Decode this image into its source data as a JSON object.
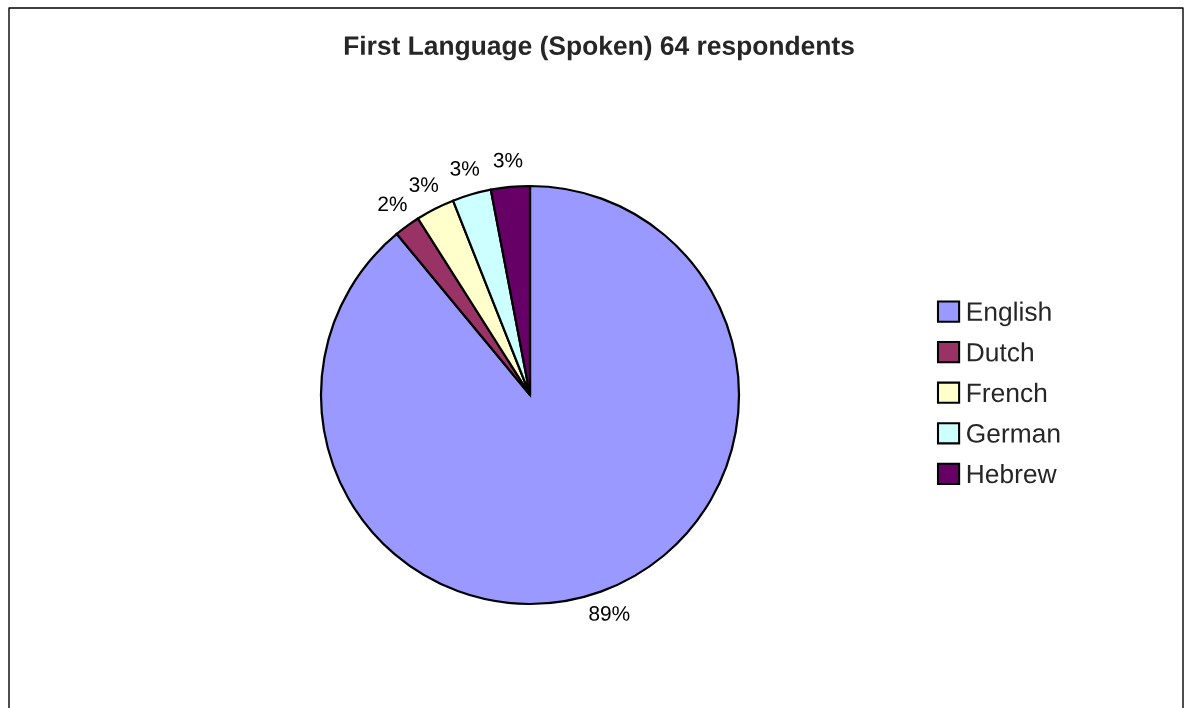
{
  "chart_data": {
    "type": "pie",
    "title": "First Language (Spoken) 64 respondents",
    "categories": [
      "English",
      "Dutch",
      "French",
      "German",
      "Hebrew"
    ],
    "values": [
      89,
      2,
      3,
      3,
      3
    ],
    "colors": [
      "#9999ff",
      "#993366",
      "#ffffcc",
      "#ccffff",
      "#660066"
    ],
    "value_labels": [
      "89%",
      "2%",
      "3%",
      "3%",
      "3%"
    ],
    "legend": "right"
  }
}
